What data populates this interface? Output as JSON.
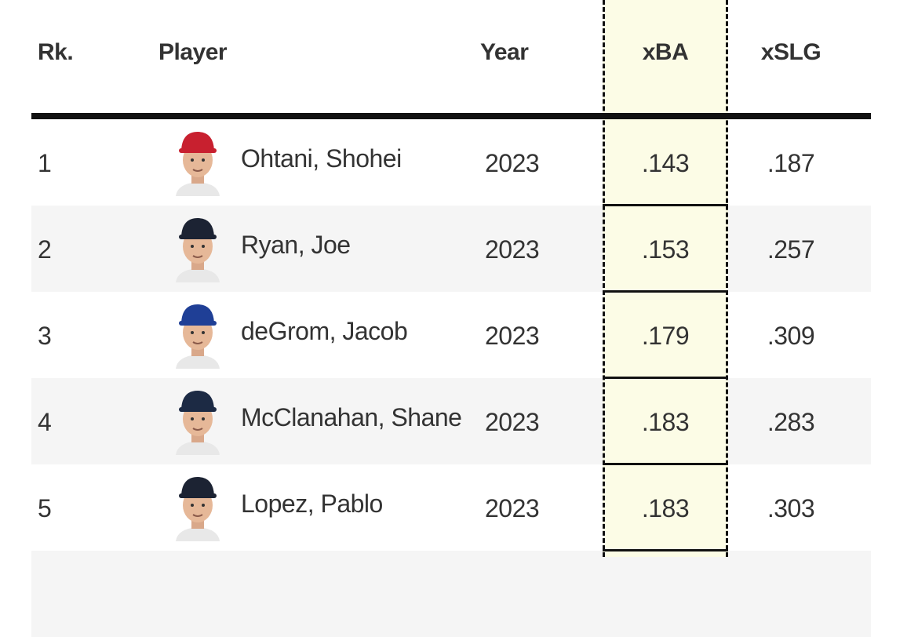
{
  "table": {
    "headers": [
      "Rk.",
      "Player",
      "Year",
      "xBA",
      "xSLG"
    ],
    "rows": [
      [
        "1",
        "Ohtani, Shohei",
        "2023",
        ".143",
        ".187"
      ],
      [
        "2",
        "Ryan, Joe",
        "2023",
        ".153",
        ".257"
      ],
      [
        "3",
        "deGrom, Jacob",
        "2023",
        ".179",
        ".309"
      ],
      [
        "4",
        "McClanahan, Shane",
        "2023",
        ".183",
        ".283"
      ],
      [
        "5",
        "Lopez, Pablo",
        "2023",
        ".183",
        ".303"
      ]
    ]
  }
}
